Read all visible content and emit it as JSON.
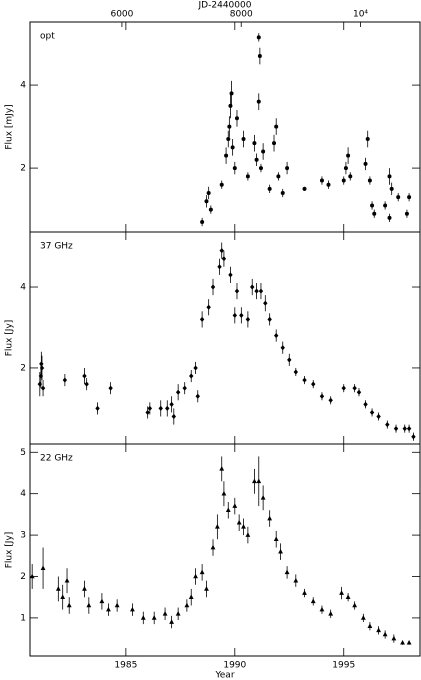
{
  "chart_data": [
    {
      "type": "scatter",
      "label": "opt",
      "ylabel": "Flux [mJy]",
      "marker": "circle",
      "color": "#000000",
      "x2label": "JD-2440000",
      "x2lim": [
        4459,
        10997
      ],
      "x2ticks": [
        6000,
        8000,
        {
          "value": 10000,
          "label": "10⁴"
        }
      ],
      "xlim": [
        1980.6,
        1998.5
      ],
      "xticks": [
        1985,
        1990,
        1995
      ],
      "ylim": [
        0.46,
        5.52
      ],
      "yticks": [
        2,
        4
      ],
      "x": [
        1988.5,
        1988.7,
        1988.8,
        1988.9,
        1989.4,
        1989.6,
        1989.7,
        1989.75,
        1989.8,
        1989.85,
        1989.9,
        1990.0,
        1990.1,
        1990.4,
        1990.6,
        1990.9,
        1991.0,
        1991.1,
        1991.15,
        1991.2,
        1991.1,
        1991.3,
        1991.6,
        1991.8,
        1991.9,
        1992.0,
        1992.2,
        1992.4,
        1993.2,
        1994.0,
        1994.3,
        1995.0,
        1995.1,
        1995.2,
        1995.3,
        1996.0,
        1996.1,
        1996.2,
        1996.3,
        1996.4,
        1996.9,
        1997.1,
        1997.2,
        1997.1,
        1997.5,
        1997.9,
        1998.0
      ],
      "values": [
        0.7,
        1.2,
        1.4,
        1.0,
        1.6,
        2.3,
        2.7,
        3.0,
        3.5,
        3.8,
        2.5,
        2.0,
        3.2,
        2.7,
        1.8,
        2.6,
        2.2,
        3.6,
        4.7,
        2.0,
        5.15,
        2.4,
        1.5,
        2.6,
        3.0,
        1.8,
        1.4,
        2.0,
        1.5,
        1.7,
        1.6,
        1.7,
        2.0,
        2.3,
        1.8,
        2.1,
        2.7,
        1.7,
        1.1,
        0.9,
        1.1,
        1.8,
        1.5,
        0.8,
        1.3,
        0.9,
        1.3
      ],
      "errors": [
        0.1,
        0.15,
        0.15,
        0.1,
        0.1,
        0.2,
        0.2,
        0.25,
        0.3,
        0.3,
        0.2,
        0.15,
        0.2,
        0.2,
        0.1,
        0.2,
        0.15,
        0.2,
        0.2,
        0.1,
        0.1,
        0.2,
        0.1,
        0.2,
        0.2,
        0.1,
        0.1,
        0.15,
        0.05,
        0.1,
        0.1,
        0.1,
        0.15,
        0.2,
        0.1,
        0.15,
        0.2,
        0.1,
        0.1,
        0.1,
        0.1,
        0.2,
        0.15,
        0.1,
        0.1,
        0.1,
        0.1
      ]
    },
    {
      "type": "scatter",
      "label": "37 GHz",
      "ylabel": "Flux [Jy]",
      "marker": "diamond",
      "color": "#000000",
      "xlim": [
        1980.6,
        1998.5
      ],
      "xticks": [
        1985,
        1990,
        1995
      ],
      "ylim": [
        0.12,
        5.36
      ],
      "yticks": [
        2,
        4
      ],
      "x": [
        1981.05,
        1981.1,
        1981.12,
        1981.15,
        1981.2,
        1982.2,
        1983.1,
        1983.2,
        1983.7,
        1984.3,
        1986.0,
        1986.1,
        1986.6,
        1986.9,
        1987.1,
        1987.2,
        1987.4,
        1987.7,
        1988.0,
        1988.2,
        1988.3,
        1988.5,
        1988.8,
        1989.0,
        1989.3,
        1989.4,
        1989.5,
        1989.8,
        1990.0,
        1990.1,
        1990.3,
        1990.6,
        1990.8,
        1991.0,
        1991.2,
        1991.4,
        1991.6,
        1991.9,
        1992.2,
        1992.5,
        1992.8,
        1993.2,
        1993.6,
        1994.0,
        1994.4,
        1995.0,
        1995.5,
        1995.7,
        1996.0,
        1996.3,
        1996.6,
        1997.0,
        1997.4,
        1997.8,
        1998.0,
        1998.2
      ],
      "values": [
        1.6,
        1.8,
        2.1,
        2.0,
        1.5,
        1.7,
        1.8,
        1.6,
        1.0,
        1.5,
        0.9,
        1.0,
        1.0,
        1.0,
        1.1,
        0.8,
        1.4,
        1.5,
        1.8,
        2.0,
        1.3,
        3.2,
        3.5,
        4.0,
        4.5,
        4.9,
        4.7,
        4.3,
        3.3,
        3.9,
        3.3,
        3.2,
        4.0,
        3.9,
        3.9,
        3.6,
        3.2,
        2.8,
        2.5,
        2.2,
        1.9,
        1.7,
        1.6,
        1.3,
        1.2,
        1.5,
        1.5,
        1.4,
        1.1,
        0.9,
        0.8,
        0.6,
        0.5,
        0.5,
        0.5,
        0.3
      ],
      "errors": [
        0.3,
        0.3,
        0.3,
        0.3,
        0.2,
        0.15,
        0.2,
        0.15,
        0.15,
        0.15,
        0.15,
        0.15,
        0.2,
        0.2,
        0.2,
        0.2,
        0.2,
        0.15,
        0.15,
        0.15,
        0.15,
        0.2,
        0.2,
        0.2,
        0.2,
        0.2,
        0.2,
        0.2,
        0.2,
        0.2,
        0.2,
        0.2,
        0.2,
        0.2,
        0.2,
        0.2,
        0.15,
        0.15,
        0.15,
        0.15,
        0.1,
        0.1,
        0.1,
        0.1,
        0.1,
        0.1,
        0.1,
        0.1,
        0.1,
        0.1,
        0.1,
        0.1,
        0.1,
        0.1,
        0.1,
        0.1
      ]
    },
    {
      "type": "scatter",
      "label": "22 GHz",
      "ylabel": "Flux [Jy]",
      "marker": "triangle",
      "color": "#000000",
      "xlabel": "Year",
      "xlim": [
        1980.6,
        1998.5
      ],
      "xticks": [
        1985,
        1990,
        1995
      ],
      "ylim": [
        0.08,
        5.2
      ],
      "yticks": [
        1,
        2,
        3,
        4,
        5
      ],
      "x": [
        1980.7,
        1981.2,
        1981.9,
        1982.1,
        1982.3,
        1982.4,
        1983.1,
        1983.3,
        1983.9,
        1984.2,
        1984.6,
        1985.3,
        1985.8,
        1986.3,
        1986.8,
        1987.1,
        1987.4,
        1987.8,
        1988.0,
        1988.2,
        1988.5,
        1988.7,
        1989.0,
        1989.2,
        1989.4,
        1989.5,
        1989.7,
        1990.0,
        1990.2,
        1990.4,
        1990.6,
        1990.9,
        1991.1,
        1991.3,
        1991.6,
        1991.9,
        1992.1,
        1992.4,
        1992.8,
        1993.2,
        1993.6,
        1994.0,
        1994.4,
        1994.9,
        1995.2,
        1995.5,
        1995.9,
        1996.2,
        1996.6,
        1996.9,
        1997.3,
        1997.7,
        1998.0
      ],
      "values": [
        2.0,
        2.2,
        1.7,
        1.5,
        1.9,
        1.3,
        1.7,
        1.3,
        1.4,
        1.2,
        1.3,
        1.2,
        1.0,
        1.0,
        1.1,
        0.9,
        1.1,
        1.3,
        1.5,
        2.0,
        2.1,
        1.7,
        2.7,
        3.2,
        4.6,
        4.0,
        3.6,
        3.7,
        3.3,
        3.2,
        3.0,
        4.3,
        4.3,
        3.9,
        3.4,
        2.9,
        2.6,
        2.1,
        1.9,
        1.6,
        1.4,
        1.2,
        1.1,
        1.6,
        1.5,
        1.3,
        1.0,
        0.8,
        0.7,
        0.6,
        0.5,
        0.4,
        0.4
      ],
      "errors": [
        0.3,
        0.5,
        0.3,
        0.3,
        0.3,
        0.2,
        0.2,
        0.2,
        0.2,
        0.15,
        0.15,
        0.15,
        0.15,
        0.15,
        0.15,
        0.15,
        0.15,
        0.15,
        0.2,
        0.2,
        0.2,
        0.2,
        0.2,
        0.3,
        0.3,
        0.3,
        0.2,
        0.2,
        0.2,
        0.2,
        0.2,
        0.3,
        0.6,
        0.3,
        0.2,
        0.2,
        0.2,
        0.15,
        0.15,
        0.1,
        0.1,
        0.1,
        0.1,
        0.15,
        0.1,
        0.1,
        0.1,
        0.1,
        0.1,
        0.1,
        0.1,
        0.05,
        0.05
      ]
    }
  ]
}
